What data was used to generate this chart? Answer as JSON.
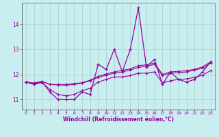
{
  "xlabel": "Windchill (Refroidissement éolien,°C)",
  "bg_color": "#c8eef0",
  "line_color": "#990099",
  "grid_color": "#aacccc",
  "ylim": [
    10.6,
    14.85
  ],
  "xlim": [
    -0.5,
    23.5
  ],
  "yticks": [
    11,
    12,
    13,
    14
  ],
  "xticks": [
    0,
    1,
    2,
    3,
    4,
    5,
    6,
    7,
    8,
    9,
    10,
    11,
    12,
    13,
    14,
    15,
    16,
    17,
    18,
    19,
    20,
    21,
    22,
    23
  ],
  "main_y": [
    11.7,
    11.6,
    11.7,
    11.3,
    11.0,
    11.0,
    11.0,
    11.3,
    11.2,
    12.4,
    12.2,
    13.0,
    12.1,
    13.0,
    14.65,
    12.3,
    12.6,
    11.6,
    12.1,
    11.8,
    11.7,
    11.8,
    12.1,
    12.5
  ],
  "line2_y": [
    11.7,
    11.63,
    11.67,
    11.4,
    11.2,
    11.15,
    11.2,
    11.35,
    11.45,
    11.7,
    11.8,
    11.9,
    11.9,
    11.95,
    12.05,
    12.05,
    12.1,
    11.65,
    11.75,
    11.8,
    11.82,
    11.88,
    11.97,
    12.15
  ],
  "line3_y": [
    11.7,
    11.65,
    11.72,
    11.6,
    11.58,
    11.57,
    11.6,
    11.65,
    11.75,
    11.88,
    11.97,
    12.05,
    12.1,
    12.17,
    12.28,
    12.32,
    12.4,
    11.95,
    12.05,
    12.07,
    12.1,
    12.17,
    12.25,
    12.45
  ],
  "line4_y": [
    11.7,
    11.65,
    11.72,
    11.6,
    11.6,
    11.6,
    11.63,
    11.67,
    11.77,
    11.92,
    12.02,
    12.1,
    12.16,
    12.22,
    12.35,
    12.38,
    12.45,
    12.0,
    12.1,
    12.12,
    12.15,
    12.2,
    12.3,
    12.5
  ]
}
